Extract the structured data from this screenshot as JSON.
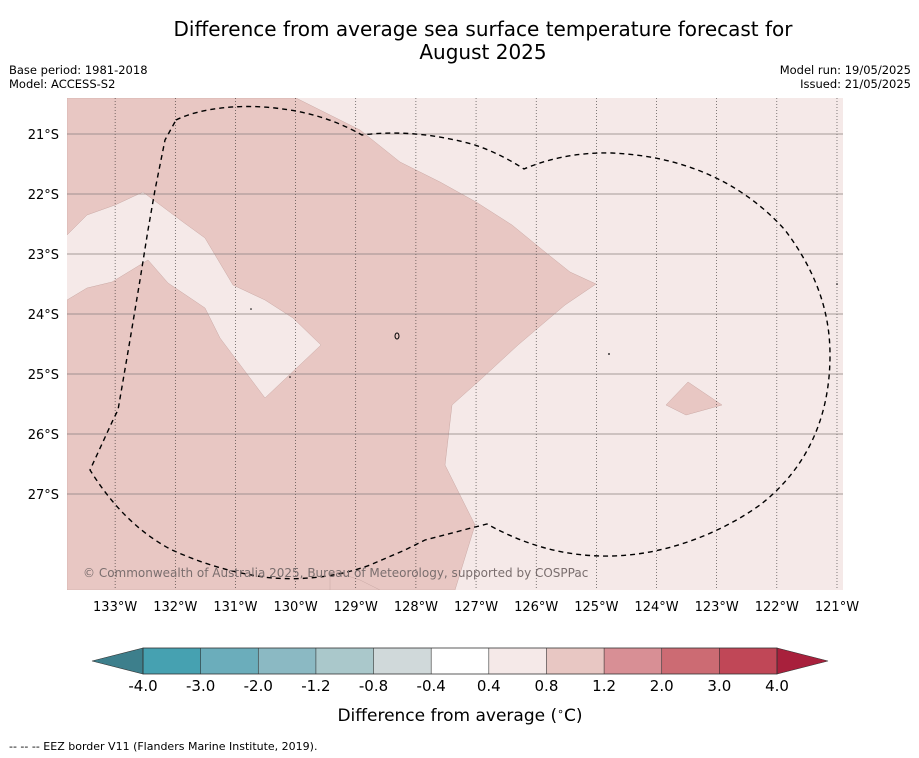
{
  "title": {
    "line1": "Difference from average sea surface temperature forecast for",
    "line2": "August 2025"
  },
  "meta_left": {
    "base_period": "Base period: 1981-2018",
    "model": "Model: ACCESS-S2"
  },
  "meta_right": {
    "model_run": "Model run: 19/05/2025",
    "issued": "Issued: 21/05/2025"
  },
  "map": {
    "lon_range": [
      -133.8,
      -120.9
    ],
    "lat_range": [
      -28.6,
      -20.4
    ],
    "lon_ticks": [
      -133,
      -132,
      -131,
      -130,
      -129,
      -128,
      -127,
      -126,
      -125,
      -124,
      -123,
      -122,
      -121
    ],
    "lon_tick_labels": [
      "133°W",
      "132°W",
      "131°W",
      "130°W",
      "129°W",
      "128°W",
      "127°W",
      "126°W",
      "125°W",
      "124°W",
      "123°W",
      "122°W",
      "121°W"
    ],
    "lat_ticks": [
      -21,
      -22,
      -23,
      -24,
      -25,
      -26,
      -27
    ],
    "lat_tick_labels": [
      "21°S",
      "22°S",
      "23°S",
      "24°S",
      "25°S",
      "26°S",
      "27°S"
    ],
    "background_class_color": "#f5e9e8",
    "anomaly_region_color": "#e8c7c3",
    "eez_line_style": "dashed black",
    "copyright": "© Commonwealth of Australia 2025, Bureau of Meteorology, supported by COSPPac"
  },
  "colorbar": {
    "boundaries": [
      "-4.0",
      "-3.0",
      "-2.0",
      "-1.2",
      "-0.8",
      "-0.4",
      "0.4",
      "0.8",
      "1.2",
      "2.0",
      "3.0",
      "4.0"
    ],
    "colors": [
      "#46a1b1",
      "#6badbb",
      "#8bb9c3",
      "#aac8cb",
      "#d0d9da",
      "#ffffff",
      "#f5e9e8",
      "#e8c7c3",
      "#d88f95",
      "#cc6b73",
      "#c04757"
    ],
    "under_color": "#3d7f8c",
    "over_color": "#a8203c",
    "label": "Difference from average (",
    "label_unit": "C)"
  },
  "footnote": "--  --  -- EEZ border V11 (Flanders Marine Institute, 2019)."
}
